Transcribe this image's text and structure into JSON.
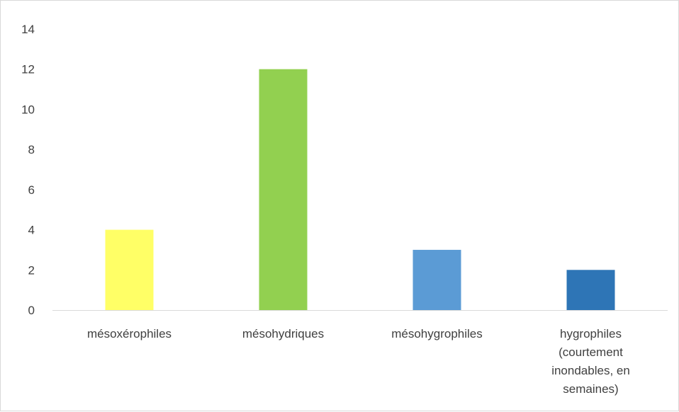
{
  "chart_data": {
    "type": "bar",
    "categories": [
      [
        "mésoxérophiles"
      ],
      [
        "mésohydriques"
      ],
      [
        "mésohygrophiles"
      ],
      [
        "hygrophiles",
        "(courtement",
        "inondables, en",
        "semaines)"
      ]
    ],
    "values": [
      4,
      12,
      3,
      2
    ],
    "colors": [
      "#ffff66",
      "#92d050",
      "#5b9bd5",
      "#2e75b6"
    ],
    "yticks": [
      "0",
      "2",
      "4",
      "6",
      "8",
      "10",
      "12",
      "14"
    ],
    "ylim": [
      0,
      14
    ],
    "grid": false,
    "legend": "none",
    "axis_color": "#d9d9d9",
    "text_color": "#404040"
  }
}
